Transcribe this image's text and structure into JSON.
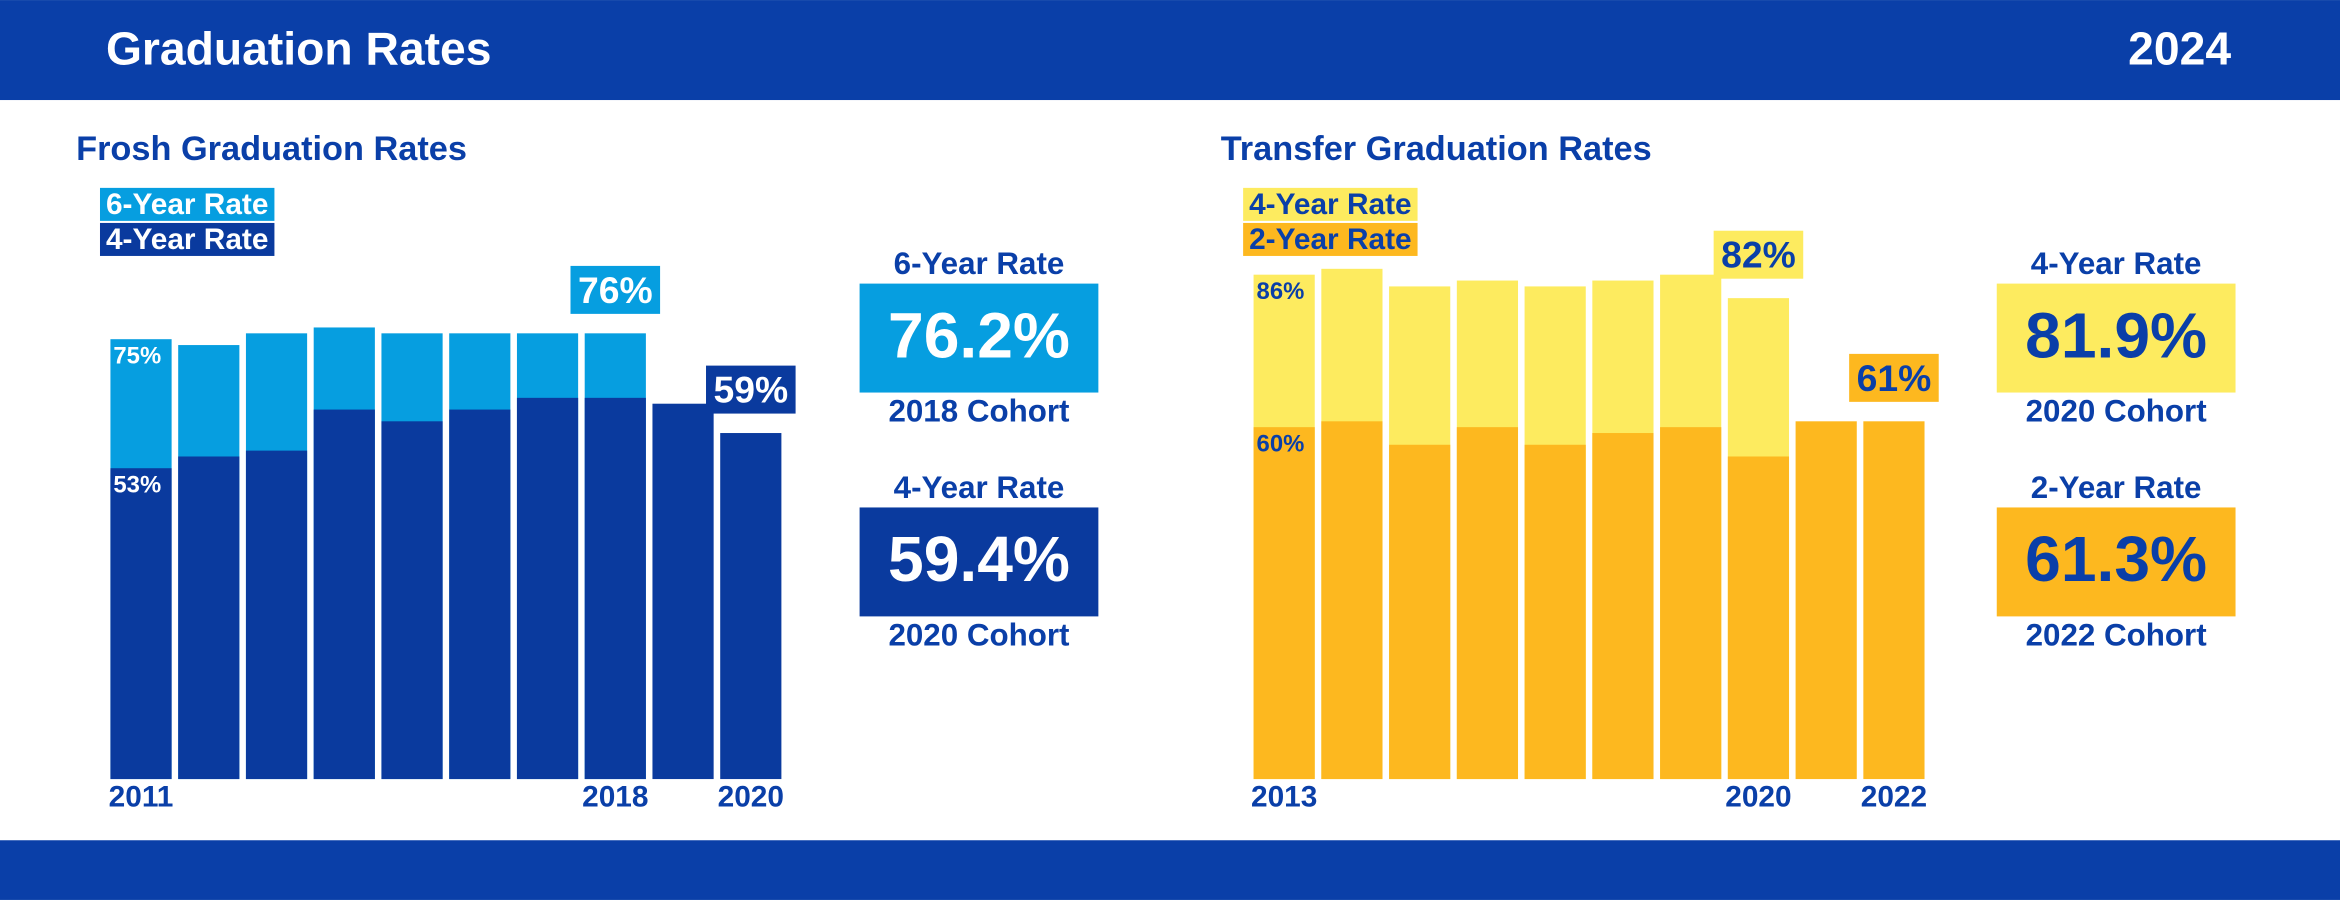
{
  "header": {
    "title": "Graduation Rates",
    "year": "2024"
  },
  "chart_data": [
    {
      "type": "bar",
      "title": "Frosh Graduation Rates",
      "categories": [
        "2011",
        null,
        null,
        null,
        null,
        null,
        null,
        "2018",
        null,
        "2020"
      ],
      "ylim": [
        0,
        100
      ],
      "series": [
        {
          "name": "6-Year Rate",
          "color": "#069ee0",
          "values": [
            75,
            74,
            76,
            77,
            76,
            76,
            76,
            76,
            null,
            null
          ],
          "value_labels": [
            "75%",
            null,
            null,
            null,
            null,
            null,
            null,
            "76%",
            null,
            null
          ]
        },
        {
          "name": "4-Year Rate",
          "color": "#0a3a9e",
          "values": [
            53,
            55,
            56,
            63,
            61,
            63,
            65,
            65,
            64,
            59
          ],
          "value_labels": [
            "53%",
            null,
            null,
            null,
            null,
            null,
            null,
            null,
            null,
            "59%"
          ]
        }
      ]
    },
    {
      "type": "bar",
      "title": "Transfer Graduation Rates",
      "categories": [
        "2013",
        null,
        null,
        null,
        null,
        null,
        null,
        "2020",
        null,
        "2022"
      ],
      "ylim": [
        0,
        100
      ],
      "series": [
        {
          "name": "4-Year Rate",
          "color": "#fdeb5f",
          "values": [
            86,
            87,
            84,
            85,
            84,
            85,
            86,
            82,
            null,
            null
          ],
          "value_labels": [
            "86%",
            null,
            null,
            null,
            null,
            null,
            null,
            "82%",
            null,
            null
          ]
        },
        {
          "name": "2-Year Rate",
          "color": "#fdb81f",
          "values": [
            60,
            61,
            57,
            60,
            57,
            59,
            60,
            55,
            61,
            61
          ],
          "value_labels": [
            "60%",
            null,
            null,
            null,
            null,
            null,
            null,
            null,
            null,
            "61%"
          ]
        }
      ]
    }
  ],
  "summaries": [
    [
      {
        "label": "6-Year Rate",
        "value": "76.2%",
        "cohort": "2018 Cohort",
        "color": "#069ee0"
      },
      {
        "label": "4-Year Rate",
        "value": "59.4%",
        "cohort": "2020 Cohort",
        "color": "#0a3a9e"
      }
    ],
    [
      {
        "label": "4-Year Rate",
        "value": "81.9%",
        "cohort": "2020 Cohort",
        "color": "#fdeb5f"
      },
      {
        "label": "2-Year Rate",
        "value": "61.3%",
        "cohort": "2022 Cohort",
        "color": "#fdb81f"
      }
    ]
  ]
}
